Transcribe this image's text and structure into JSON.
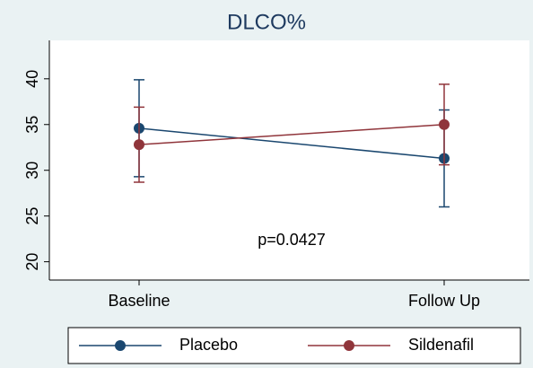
{
  "chart_data": {
    "type": "line",
    "title": "DLCO%",
    "annotation": "p=0.0427",
    "categories": [
      "Baseline",
      "Follow Up"
    ],
    "series": [
      {
        "name": "Placebo",
        "color": "#1a476f",
        "values": [
          34.6,
          31.3
        ],
        "errors": [
          5.3,
          5.3
        ]
      },
      {
        "name": "Sildenafil",
        "color": "#90353b",
        "values": [
          32.8,
          35.0
        ],
        "errors": [
          4.1,
          4.4
        ]
      }
    ],
    "ylim": [
      18,
      44.2
    ],
    "yticks": [
      20,
      25,
      30,
      35,
      40
    ],
    "legend": "bottom"
  }
}
